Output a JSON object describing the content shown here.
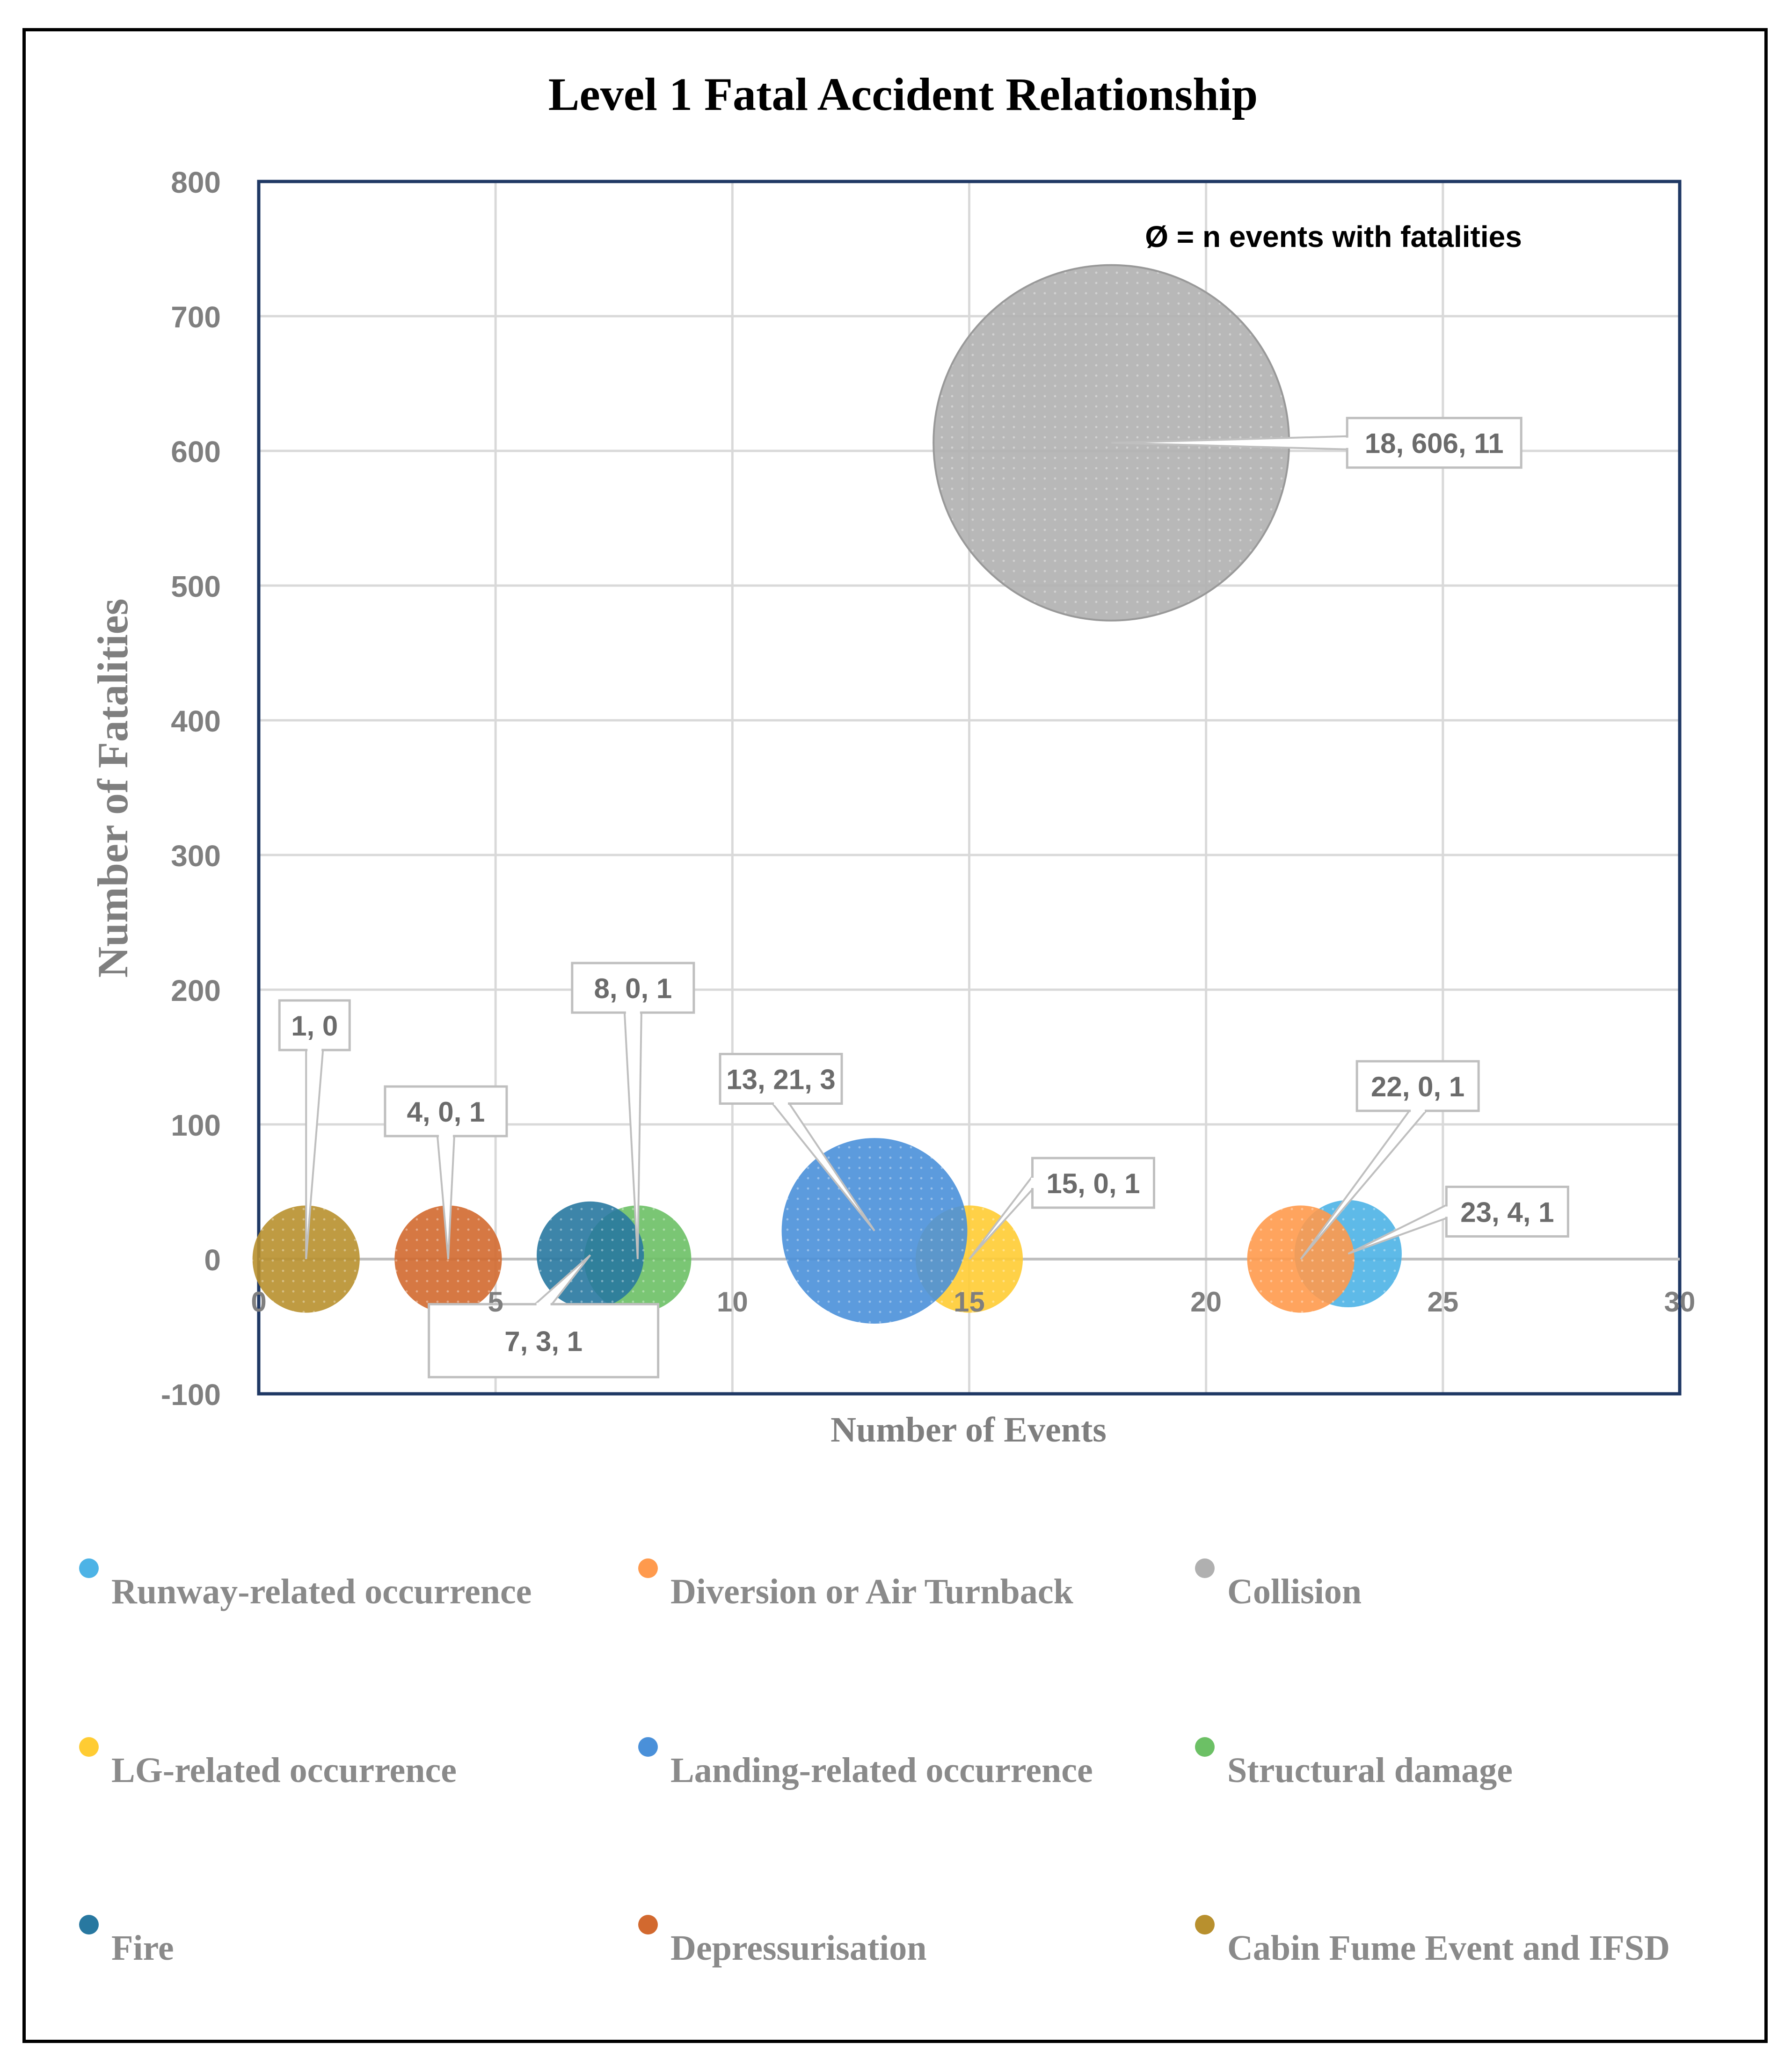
{
  "chart_data": {
    "type": "bubble",
    "title": "Level 1 Fatal Accident Relationship",
    "xlabel": "Number of Events",
    "ylabel": "Number of Fatalities",
    "xlim": [
      0,
      30
    ],
    "ylim": [
      -100,
      800
    ],
    "x_ticks": [
      0,
      5,
      10,
      15,
      20,
      25,
      30
    ],
    "y_ticks": [
      -100,
      0,
      100,
      200,
      300,
      400,
      500,
      600,
      700,
      800
    ],
    "x_tick_labels": [
      "0",
      "5",
      "10",
      "15",
      "20",
      "25",
      "30"
    ],
    "y_tick_labels": [
      "-100",
      "0",
      "100",
      "200",
      "300",
      "400",
      "500",
      "600",
      "700",
      "800"
    ],
    "grid": true,
    "annotation": "Ø = n events with fatalities",
    "legend_position": "bottom",
    "series": [
      {
        "name": "Runway-related occurrence",
        "x": 23,
        "y": 4,
        "size": 1,
        "label": "23, 4, 1",
        "color": "#4db3e6"
      },
      {
        "name": "Diversion or Air Turnback",
        "x": 22,
        "y": 0,
        "size": 1,
        "label": "22, 0, 1",
        "color": "#ff9a4d"
      },
      {
        "name": "Collision",
        "x": 18,
        "y": 606,
        "size": 11,
        "label": "18, 606, 11",
        "color": "#b0b0b0"
      },
      {
        "name": "LG-related occurrence",
        "x": 15,
        "y": 0,
        "size": 1,
        "label": "15, 0, 1",
        "color": "#ffcc33"
      },
      {
        "name": "Landing-related occurrence",
        "x": 13,
        "y": 21,
        "size": 3,
        "label": "13, 21, 3",
        "color": "#4a90d9"
      },
      {
        "name": "Structural damage",
        "x": 8,
        "y": 0,
        "size": 1,
        "label": "8, 0, 1",
        "color": "#6cc065"
      },
      {
        "name": "Fire",
        "x": 7,
        "y": 3,
        "size": 1,
        "label": "7, 3, 1",
        "color": "#2878a0"
      },
      {
        "name": "Depressurisation",
        "x": 4,
        "y": 0,
        "size": 1,
        "label": "4, 0, 1",
        "color": "#d2692f"
      },
      {
        "name": "Cabin Fume Event and IFSD",
        "x": 1,
        "y": 0,
        "size": 1,
        "label": "1, 0",
        "color": "#b8902e"
      }
    ]
  }
}
